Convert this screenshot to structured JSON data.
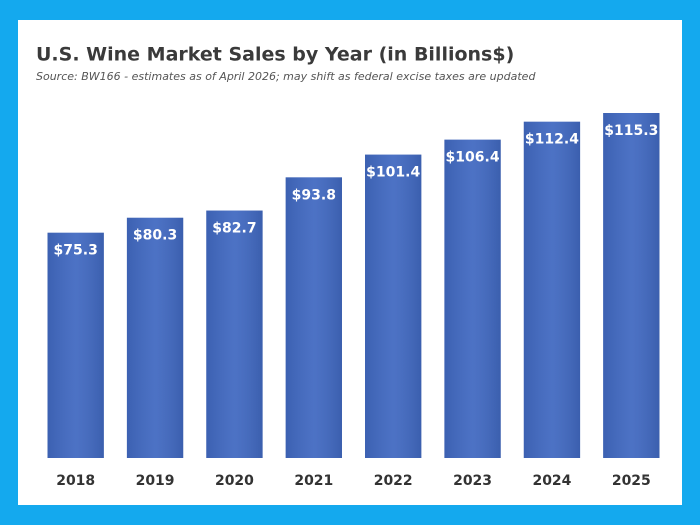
{
  "chart_data": {
    "type": "bar",
    "title": "U.S. Wine Market Sales by Year (in Billions$)",
    "subtitle": "Source: BW166 - estimates as of April 2026; may shift as federal excise taxes are updated",
    "categories": [
      "2018",
      "2019",
      "2020",
      "2021",
      "2022",
      "2023",
      "2024",
      "2025"
    ],
    "values": [
      75.3,
      80.3,
      82.7,
      93.8,
      101.4,
      106.4,
      112.4,
      115.3
    ],
    "value_labels": [
      "$75.3",
      "$80.3",
      "$82.7",
      "$93.8",
      "$101.4",
      "$106.4",
      "$112.4",
      "$115.3"
    ],
    "color": "#4169c1"
  }
}
